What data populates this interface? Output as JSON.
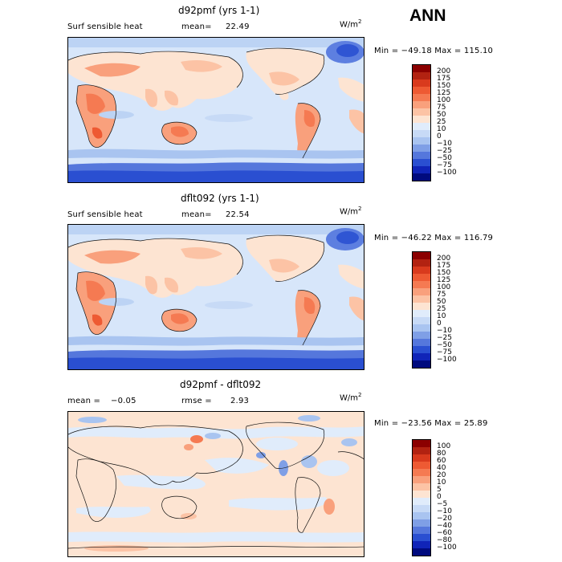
{
  "season": "ANN",
  "units": "W/m",
  "units_sup": "2",
  "panels": [
    {
      "title": "d92pmf (yrs 1-1)",
      "left_label": "Surf sensible heat",
      "stat_label": "mean=",
      "stat_value": "22.49",
      "minmax": "Min = −49.18  Max = 115.10",
      "colorbar": {
        "labels": [
          "200",
          "175",
          "150",
          "125",
          "100",
          "75",
          "50",
          "25",
          "10",
          "0",
          "−10",
          "−25",
          "−50",
          "−75",
          "−100"
        ],
        "colors": [
          "#8b0000",
          "#b22211",
          "#d93a1d",
          "#ee5a33",
          "#f57a52",
          "#f9a07c",
          "#fcc3a5",
          "#fde4d2",
          "#e0ecfb",
          "#c7daf6",
          "#a9c4f0",
          "#7f9fe6",
          "#5577dc",
          "#2a4fd1",
          "#1024b8",
          "#000a7e"
        ]
      }
    },
    {
      "title": "dflt092 (yrs 1-1)",
      "left_label": "Surf sensible heat",
      "stat_label": "mean=",
      "stat_value": "22.54",
      "minmax": "Min = −46.22  Max = 116.79",
      "colorbar": {
        "labels": [
          "200",
          "175",
          "150",
          "125",
          "100",
          "75",
          "50",
          "25",
          "10",
          "0",
          "−10",
          "−25",
          "−50",
          "−75",
          "−100"
        ],
        "colors": [
          "#8b0000",
          "#b22211",
          "#d93a1d",
          "#ee5a33",
          "#f57a52",
          "#f9a07c",
          "#fcc3a5",
          "#fde4d2",
          "#e0ecfb",
          "#c7daf6",
          "#a9c4f0",
          "#7f9fe6",
          "#5577dc",
          "#2a4fd1",
          "#1024b8",
          "#000a7e"
        ]
      }
    },
    {
      "title": "d92pmf - dflt092",
      "left_label": "mean =",
      "left_value": "−0.05",
      "stat_label": "rmse =",
      "stat_value": "2.93",
      "minmax": "Min = −23.56  Max =  25.89",
      "colorbar": {
        "labels": [
          "100",
          "80",
          "60",
          "40",
          "20",
          "10",
          "5",
          "0",
          "−5",
          "−10",
          "−20",
          "−40",
          "−60",
          "−80",
          "−100"
        ],
        "colors": [
          "#8b0000",
          "#b22211",
          "#d93a1d",
          "#ee5a33",
          "#f57a52",
          "#f9a07c",
          "#fcc3a5",
          "#fde4d2",
          "#e0ecfb",
          "#c7daf6",
          "#a9c4f0",
          "#7f9fe6",
          "#5577dc",
          "#2a4fd1",
          "#1024b8",
          "#000a7e"
        ]
      }
    }
  ]
}
